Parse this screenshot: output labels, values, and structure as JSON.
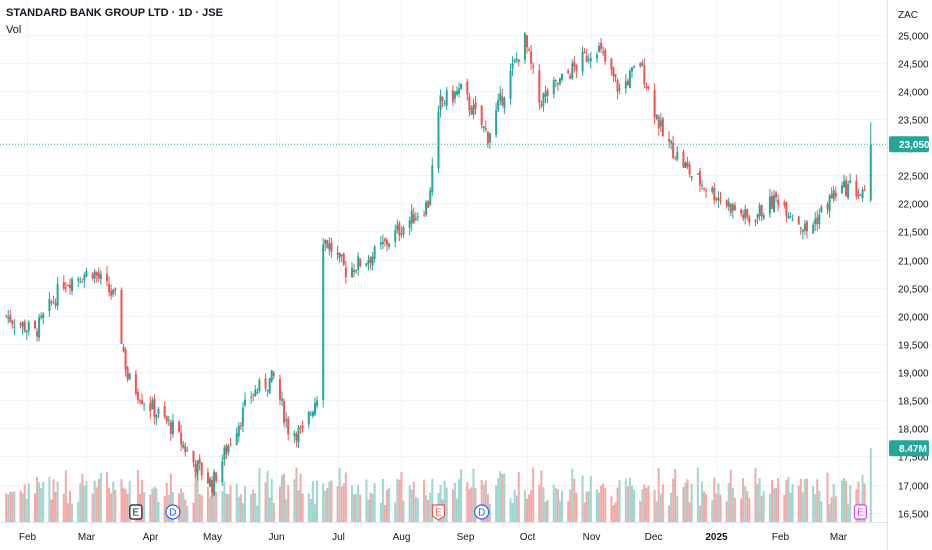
{
  "legend": {
    "title": "STANDARD BANK GROUP LTD · 1D · JSE",
    "vol_label": "Vol"
  },
  "currency": "ZAC",
  "colors": {
    "up": "#26a69a",
    "down": "#ef5350",
    "up_vol": "#9fd6cf",
    "down_vol": "#f5a9a7",
    "earnings": "#131722",
    "dividend": "#2962ff",
    "earnings_red": "#ef5350",
    "earnings_purple": "#e040fb"
  },
  "current_price_label": "23,050",
  "current_volume_label": "8.47M",
  "events": [
    {
      "type": "earnings",
      "label": "E",
      "x_date": "2024-03-25",
      "style": "dark"
    },
    {
      "type": "dividend",
      "label": "D",
      "x_date": "2024-04-12",
      "style": "blue"
    },
    {
      "type": "earnings",
      "label": "E",
      "x_date": "2024-08-19",
      "style": "red"
    },
    {
      "type": "dividend",
      "label": "D",
      "x_date": "2024-09-09",
      "style": "blue"
    },
    {
      "type": "earnings",
      "label": "E",
      "x_date": "2025-03-12",
      "style": "purple"
    }
  ],
  "chart_data": {
    "type": "candlestick",
    "title": "STANDARD BANK GROUP LTD · 1D · JSE",
    "y_unit": "ZAC",
    "ylim": [
      16300,
      25400
    ],
    "y_ticks": [
      16500,
      17000,
      17500,
      18000,
      18500,
      19000,
      19500,
      20000,
      20500,
      21000,
      21500,
      22000,
      22500,
      23000,
      23500,
      24000,
      24500,
      25000
    ],
    "y_tick_labels": [
      "16,500",
      "17,000",
      "17,500",
      "18,000",
      "18,500",
      "19,000",
      "19,500",
      "20,000",
      "20,500",
      "21,000",
      "21,500",
      "22,000",
      "22,500",
      "23,000",
      "23,500",
      "24,000",
      "24,500",
      "25,000"
    ],
    "x_tick_labels": [
      "Feb",
      "Mar",
      "Apr",
      "May",
      "Jun",
      "Jul",
      "Aug",
      "Sep",
      "Oct",
      "Nov",
      "Dec",
      "2025",
      "Feb",
      "Mar"
    ],
    "x_tick_dates": [
      "2024-02-01",
      "2024-03-01",
      "2024-04-01",
      "2024-05-01",
      "2024-06-01",
      "2024-07-01",
      "2024-08-01",
      "2024-09-01",
      "2024-10-01",
      "2024-11-01",
      "2024-12-01",
      "2025-01-01",
      "2025-02-01",
      "2025-03-01"
    ],
    "x_range": [
      "2024-01-19",
      "2025-03-21"
    ],
    "closes": [
      {
        "date": "2024-01-22",
        "close": 20000
      },
      {
        "date": "2024-02-05",
        "close": 19700
      },
      {
        "date": "2024-02-19",
        "close": 20600
      },
      {
        "date": "2024-03-04",
        "close": 20800
      },
      {
        "date": "2024-03-15",
        "close": 20300
      },
      {
        "date": "2024-03-21",
        "close": 18900
      },
      {
        "date": "2024-03-29",
        "close": 18500
      },
      {
        "date": "2024-04-12",
        "close": 18000
      },
      {
        "date": "2024-04-22",
        "close": 17400
      },
      {
        "date": "2024-05-01",
        "close": 17000
      },
      {
        "date": "2024-05-10",
        "close": 17800
      },
      {
        "date": "2024-05-20",
        "close": 18600
      },
      {
        "date": "2024-05-31",
        "close": 18900
      },
      {
        "date": "2024-06-07",
        "close": 18000
      },
      {
        "date": "2024-06-14",
        "close": 17900
      },
      {
        "date": "2024-06-21",
        "close": 18600
      },
      {
        "date": "2024-06-24",
        "close": 21400
      },
      {
        "date": "2024-07-05",
        "close": 20800
      },
      {
        "date": "2024-07-19",
        "close": 21100
      },
      {
        "date": "2024-08-02",
        "close": 21600
      },
      {
        "date": "2024-08-14",
        "close": 22000
      },
      {
        "date": "2024-08-20",
        "close": 23800
      },
      {
        "date": "2024-08-30",
        "close": 24000
      },
      {
        "date": "2024-09-12",
        "close": 23200
      },
      {
        "date": "2024-09-23",
        "close": 24300
      },
      {
        "date": "2024-09-30",
        "close": 24900
      },
      {
        "date": "2024-10-07",
        "close": 23800
      },
      {
        "date": "2024-10-21",
        "close": 24300
      },
      {
        "date": "2024-11-04",
        "close": 24800
      },
      {
        "date": "2024-11-15",
        "close": 24000
      },
      {
        "date": "2024-11-25",
        "close": 24500
      },
      {
        "date": "2024-12-06",
        "close": 23200
      },
      {
        "date": "2024-12-20",
        "close": 22500
      },
      {
        "date": "2025-01-06",
        "close": 22000
      },
      {
        "date": "2025-01-17",
        "close": 21700
      },
      {
        "date": "2025-01-31",
        "close": 22100
      },
      {
        "date": "2025-02-14",
        "close": 21500
      },
      {
        "date": "2025-02-28",
        "close": 22200
      },
      {
        "date": "2025-03-07",
        "close": 22300
      },
      {
        "date": "2025-03-14",
        "close": 22100
      },
      {
        "date": "2025-03-17",
        "close": 23050
      }
    ],
    "volume_max": 12000000,
    "last_volume": 8470000
  }
}
